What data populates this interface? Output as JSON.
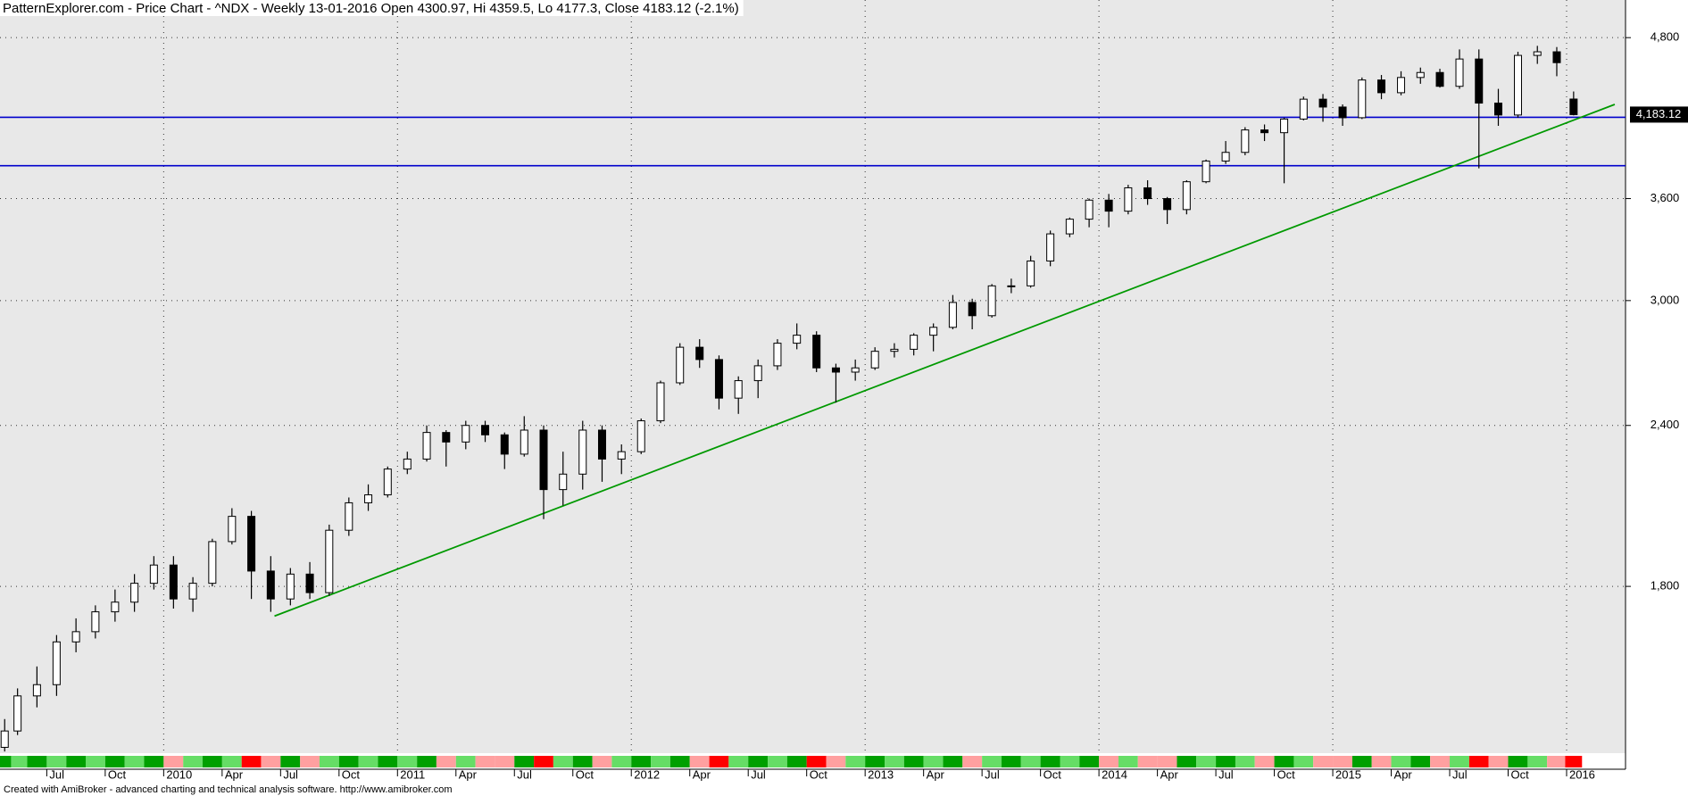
{
  "chart_data": {
    "type": "candlestick",
    "title": "PatternExplorer.com - Price Chart - ^NDX - Weekly 13-01-2016 Open 4300.97, Hi 4359.5, Lo 4177.3, Close 4183.12 (-2.1%)",
    "footer": "Created with AmiBroker - advanced charting and technical analysis software. http://www.amibroker.com",
    "y_scale": "log",
    "grid": true,
    "up_color": "#ffffff",
    "down_color": "#000000",
    "xlim": [
      2009.3,
      2016.252
    ],
    "ylim": [
      1336,
      5134
    ],
    "yticks": [
      {
        "value": 1800,
        "label": "1,800"
      },
      {
        "value": 2400,
        "label": "2,400"
      },
      {
        "value": 3000,
        "label": "3,000"
      },
      {
        "value": 3600,
        "label": "3,600"
      },
      {
        "value": 4800,
        "label": "4,800"
      }
    ],
    "xticks": [
      {
        "value": 2009.5,
        "label": "Jul"
      },
      {
        "value": 2009.75,
        "label": "Oct"
      },
      2010,
      {
        "value": 2010.25,
        "label": "Apr"
      },
      {
        "value": 2010.5,
        "label": "Jul"
      },
      {
        "value": 2010.75,
        "label": "Oct"
      },
      2011,
      {
        "value": 2011.25,
        "label": "Apr"
      },
      {
        "value": 2011.5,
        "label": "Jul"
      },
      {
        "value": 2011.75,
        "label": "Oct"
      },
      2012,
      {
        "value": 2012.25,
        "label": "Apr"
      },
      {
        "value": 2012.5,
        "label": "Jul"
      },
      {
        "value": 2012.75,
        "label": "Oct"
      },
      2013,
      {
        "value": 2013.25,
        "label": "Apr"
      },
      {
        "value": 2013.5,
        "label": "Jul"
      },
      {
        "value": 2013.75,
        "label": "Oct"
      },
      2014,
      {
        "value": 2014.25,
        "label": "Apr"
      },
      {
        "value": 2014.5,
        "label": "Jul"
      },
      {
        "value": 2014.75,
        "label": "Oct"
      },
      2015,
      {
        "value": 2015.25,
        "label": "Apr"
      },
      {
        "value": 2015.5,
        "label": "Jul"
      },
      {
        "value": 2015.75,
        "label": "Oct"
      },
      2016
    ],
    "x": [
      2009.32,
      2009.375,
      2009.458,
      2009.542,
      2009.625,
      2009.708,
      2009.792,
      2009.875,
      2009.958,
      2010.042,
      2010.125,
      2010.208,
      2010.292,
      2010.375,
      2010.458,
      2010.542,
      2010.625,
      2010.708,
      2010.792,
      2010.875,
      2010.958,
      2011.042,
      2011.125,
      2011.208,
      2011.292,
      2011.375,
      2011.458,
      2011.542,
      2011.625,
      2011.708,
      2011.792,
      2011.875,
      2011.958,
      2012.042,
      2012.125,
      2012.208,
      2012.292,
      2012.375,
      2012.458,
      2012.542,
      2012.625,
      2012.708,
      2012.792,
      2012.875,
      2012.958,
      2013.042,
      2013.125,
      2013.208,
      2013.292,
      2013.375,
      2013.458,
      2013.542,
      2013.625,
      2013.708,
      2013.792,
      2013.875,
      2013.958,
      2014.042,
      2014.125,
      2014.208,
      2014.292,
      2014.375,
      2014.458,
      2014.542,
      2014.625,
      2014.708,
      2014.792,
      2014.875,
      2014.958,
      2015.042,
      2015.125,
      2015.208,
      2015.292,
      2015.375,
      2015.458,
      2015.542,
      2015.625,
      2015.708,
      2015.792,
      2015.875,
      2015.958,
      2016.03
    ],
    "open": [
      1350,
      1390,
      1480,
      1510,
      1630,
      1660,
      1720,
      1750,
      1810,
      1870,
      1760,
      1810,
      1950,
      2040,
      1850,
      1760,
      1840,
      1780,
      1990,
      2090,
      2120,
      2220,
      2260,
      2370,
      2330,
      2400,
      2360,
      2280,
      2380,
      2140,
      2200,
      2380,
      2260,
      2290,
      2420,
      2590,
      2760,
      2700,
      2520,
      2600,
      2670,
      2780,
      2820,
      2660,
      2640,
      2660,
      2740,
      2750,
      2820,
      2860,
      2990,
      2920,
      3080,
      3080,
      3220,
      3380,
      3470,
      3590,
      3520,
      3670,
      3600,
      3530,
      3710,
      3850,
      3910,
      4070,
      4050,
      4150,
      4300,
      4240,
      4160,
      4450,
      4350,
      4470,
      4510,
      4400,
      4620,
      4270,
      4180,
      4650,
      4680,
      4300.97
    ],
    "high": [
      1420,
      1500,
      1560,
      1650,
      1700,
      1740,
      1790,
      1840,
      1900,
      1900,
      1830,
      1960,
      2070,
      2060,
      1900,
      1860,
      1880,
      2010,
      2110,
      2160,
      2230,
      2290,
      2400,
      2380,
      2420,
      2420,
      2370,
      2440,
      2400,
      2290,
      2420,
      2400,
      2320,
      2430,
      2600,
      2780,
      2800,
      2720,
      2620,
      2700,
      2800,
      2880,
      2840,
      2680,
      2700,
      2760,
      2780,
      2830,
      2880,
      3030,
      3010,
      3090,
      3120,
      3250,
      3400,
      3480,
      3600,
      3630,
      3690,
      3720,
      3610,
      3720,
      3860,
      3990,
      4090,
      4110,
      4160,
      4320,
      4340,
      4260,
      4470,
      4490,
      4520,
      4550,
      4540,
      4700,
      4700,
      4380,
      4680,
      4730,
      4720,
      4359.5
    ],
    "low": [
      1340,
      1380,
      1450,
      1480,
      1600,
      1640,
      1690,
      1720,
      1790,
      1730,
      1720,
      1800,
      1940,
      1760,
      1720,
      1740,
      1760,
      1770,
      1970,
      2060,
      2110,
      2200,
      2250,
      2230,
      2300,
      2330,
      2220,
      2270,
      2030,
      2080,
      2140,
      2170,
      2200,
      2280,
      2410,
      2580,
      2660,
      2470,
      2450,
      2520,
      2650,
      2750,
      2640,
      2500,
      2600,
      2650,
      2710,
      2720,
      2740,
      2850,
      2850,
      2910,
      3040,
      3070,
      3190,
      3360,
      3420,
      3420,
      3500,
      3560,
      3440,
      3500,
      3700,
      3830,
      3890,
      3990,
      3700,
      4140,
      4130,
      4100,
      4150,
      4300,
      4330,
      4420,
      4390,
      4380,
      3800,
      4100,
      4160,
      4580,
      4480,
      4177.3
    ],
    "close": [
      1390,
      1480,
      1510,
      1630,
      1660,
      1720,
      1750,
      1810,
      1870,
      1760,
      1810,
      1950,
      2040,
      1850,
      1760,
      1840,
      1780,
      1990,
      2090,
      2120,
      2220,
      2260,
      2370,
      2330,
      2400,
      2360,
      2280,
      2380,
      2140,
      2200,
      2380,
      2260,
      2290,
      2420,
      2590,
      2760,
      2700,
      2520,
      2600,
      2670,
      2780,
      2820,
      2660,
      2640,
      2660,
      2740,
      2750,
      2820,
      2860,
      2990,
      2920,
      3080,
      3080,
      3220,
      3380,
      3470,
      3590,
      3520,
      3670,
      3600,
      3530,
      3710,
      3850,
      3910,
      4070,
      4050,
      4150,
      4300,
      4240,
      4160,
      4450,
      4350,
      4470,
      4510,
      4400,
      4620,
      4270,
      4180,
      4650,
      4680,
      4590,
      4183.12
    ],
    "band_colors": [
      "#00a000",
      "#66dd66",
      "#00a000",
      "#66dd66",
      "#00a000",
      "#66dd66",
      "#00a000",
      "#66dd66",
      "#00a000",
      "#ffa0a0",
      "#66dd66",
      "#00a000",
      "#66dd66",
      "#ff0000",
      "#ffa0a0",
      "#00a000",
      "#ffa0a0",
      "#66dd66",
      "#00a000",
      "#66dd66",
      "#00a000",
      "#66dd66",
      "#00a000",
      "#ffa0a0",
      "#66dd66",
      "#ffa0a0",
      "#ffa0a0",
      "#00a000",
      "#ff0000",
      "#66dd66",
      "#00a000",
      "#ffa0a0",
      "#66dd66",
      "#00a000",
      "#66dd66",
      "#00a000",
      "#ffa0a0",
      "#ff0000",
      "#66dd66",
      "#00a000",
      "#66dd66",
      "#00a000",
      "#ff0000",
      "#ffa0a0",
      "#66dd66",
      "#00a000",
      "#66dd66",
      "#00a000",
      "#66dd66",
      "#00a000",
      "#ffa0a0",
      "#66dd66",
      "#00a000",
      "#66dd66",
      "#00a000",
      "#66dd66",
      "#00a000",
      "#ffa0a0",
      "#66dd66",
      "#ffa0a0",
      "#ffa0a0",
      "#00a000",
      "#66dd66",
      "#00a000",
      "#66dd66",
      "#ffa0a0",
      "#00a000",
      "#66dd66",
      "#ffa0a0",
      "#ffa0a0",
      "#00a000",
      "#ffa0a0",
      "#66dd66",
      "#00a000",
      "#ffa0a0",
      "#66dd66",
      "#ff0000",
      "#ffa0a0",
      "#00a000",
      "#66dd66",
      "#ffa0a0",
      "#ff0000"
    ],
    "hlines": [
      {
        "value": 4163,
        "color": "#0000cc"
      },
      {
        "value": 3818,
        "color": "#0000cc"
      }
    ],
    "trendline": {
      "x": [
        2010.474,
        2016.206
      ],
      "y": [
        1707,
        4260
      ],
      "color": "#009900"
    },
    "last_price": {
      "value": 4183.12,
      "label": "4,183.12"
    }
  }
}
